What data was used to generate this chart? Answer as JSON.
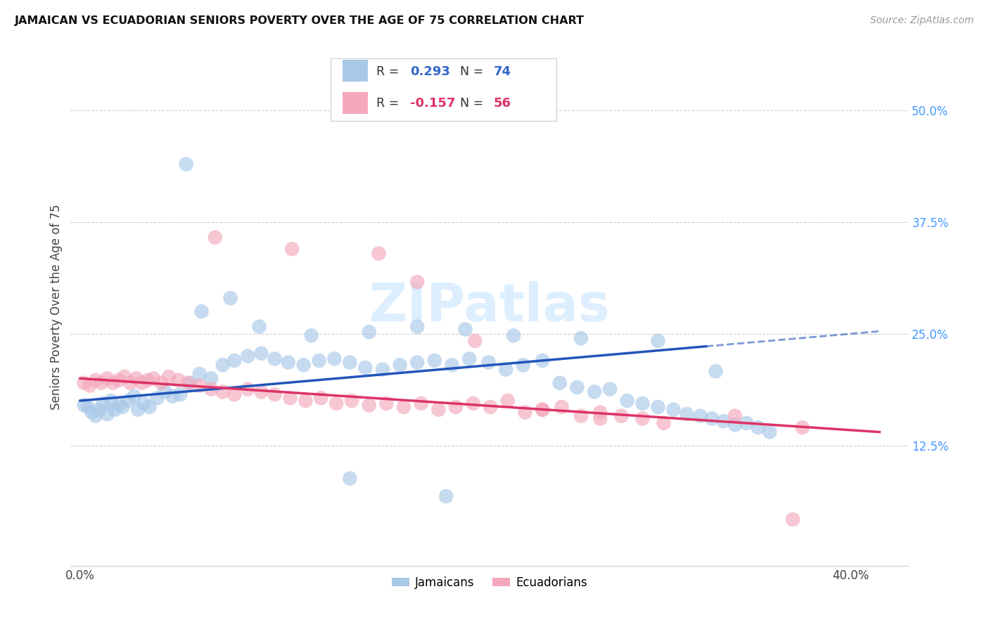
{
  "title": "JAMAICAN VS ECUADORIAN SENIORS POVERTY OVER THE AGE OF 75 CORRELATION CHART",
  "source": "Source: ZipAtlas.com",
  "ylabel": "Seniors Poverty Over the Age of 75",
  "xlim": [
    -0.005,
    0.43
  ],
  "ylim": [
    -0.01,
    0.57
  ],
  "y_ticks_right": [
    0.125,
    0.25,
    0.375,
    0.5
  ],
  "y_tick_labels_right": [
    "12.5%",
    "25.0%",
    "37.5%",
    "50.0%"
  ],
  "jamaican_color": "#a8c8e8",
  "ecuadorian_color": "#f4a8bc",
  "trend_jamaican_color": "#2255bb",
  "trend_ecuadorian_color": "#dd3366",
  "watermark_color": "#ddeeff",
  "jamaican_x": [
    0.002,
    0.004,
    0.006,
    0.008,
    0.01,
    0.012,
    0.014,
    0.016,
    0.018,
    0.02,
    0.022,
    0.025,
    0.028,
    0.03,
    0.033,
    0.036,
    0.04,
    0.044,
    0.048,
    0.052,
    0.057,
    0.062,
    0.068,
    0.074,
    0.08,
    0.087,
    0.094,
    0.101,
    0.108,
    0.116,
    0.124,
    0.132,
    0.14,
    0.148,
    0.157,
    0.166,
    0.175,
    0.184,
    0.193,
    0.202,
    0.212,
    0.221,
    0.23,
    0.24,
    0.249,
    0.258,
    0.267,
    0.275,
    0.284,
    0.292,
    0.3,
    0.308,
    0.315,
    0.322,
    0.328,
    0.334,
    0.34,
    0.346,
    0.352,
    0.358,
    0.063,
    0.078,
    0.093,
    0.12,
    0.15,
    0.175,
    0.2,
    0.225,
    0.26,
    0.3,
    0.33,
    0.055,
    0.14,
    0.19
  ],
  "jamaican_y": [
    0.17,
    0.168,
    0.162,
    0.158,
    0.165,
    0.172,
    0.16,
    0.175,
    0.165,
    0.17,
    0.168,
    0.175,
    0.18,
    0.165,
    0.172,
    0.168,
    0.178,
    0.185,
    0.18,
    0.182,
    0.195,
    0.205,
    0.2,
    0.215,
    0.22,
    0.225,
    0.228,
    0.222,
    0.218,
    0.215,
    0.22,
    0.222,
    0.218,
    0.212,
    0.21,
    0.215,
    0.218,
    0.22,
    0.215,
    0.222,
    0.218,
    0.21,
    0.215,
    0.22,
    0.195,
    0.19,
    0.185,
    0.188,
    0.175,
    0.172,
    0.168,
    0.165,
    0.16,
    0.158,
    0.155,
    0.152,
    0.148,
    0.15,
    0.145,
    0.14,
    0.275,
    0.29,
    0.258,
    0.248,
    0.252,
    0.258,
    0.255,
    0.248,
    0.245,
    0.242,
    0.208,
    0.44,
    0.088,
    0.068
  ],
  "ecuadorian_x": [
    0.002,
    0.005,
    0.008,
    0.011,
    0.014,
    0.017,
    0.02,
    0.023,
    0.026,
    0.029,
    0.032,
    0.035,
    0.038,
    0.042,
    0.046,
    0.051,
    0.056,
    0.062,
    0.068,
    0.074,
    0.08,
    0.087,
    0.094,
    0.101,
    0.109,
    0.117,
    0.125,
    0.133,
    0.141,
    0.15,
    0.159,
    0.168,
    0.177,
    0.186,
    0.195,
    0.204,
    0.213,
    0.222,
    0.231,
    0.24,
    0.25,
    0.26,
    0.27,
    0.281,
    0.292,
    0.303,
    0.07,
    0.11,
    0.155,
    0.175,
    0.205,
    0.24,
    0.27,
    0.34,
    0.375,
    0.37
  ],
  "ecuadorian_y": [
    0.195,
    0.192,
    0.198,
    0.195,
    0.2,
    0.195,
    0.198,
    0.202,
    0.195,
    0.2,
    0.195,
    0.198,
    0.2,
    0.195,
    0.202,
    0.198,
    0.195,
    0.192,
    0.188,
    0.185,
    0.182,
    0.188,
    0.185,
    0.182,
    0.178,
    0.175,
    0.178,
    0.172,
    0.175,
    0.17,
    0.172,
    0.168,
    0.172,
    0.165,
    0.168,
    0.172,
    0.168,
    0.175,
    0.162,
    0.165,
    0.168,
    0.158,
    0.162,
    0.158,
    0.155,
    0.15,
    0.358,
    0.345,
    0.34,
    0.308,
    0.242,
    0.165,
    0.155,
    0.158,
    0.145,
    0.042
  ],
  "jamaican_R": 0.293,
  "jamaican_N": 74,
  "ecuadorian_R": -0.157,
  "ecuadorian_N": 56,
  "trend_solid_end_x": 0.325,
  "trend_dashed_start_x": 0.325,
  "trend_end_x": 0.415
}
